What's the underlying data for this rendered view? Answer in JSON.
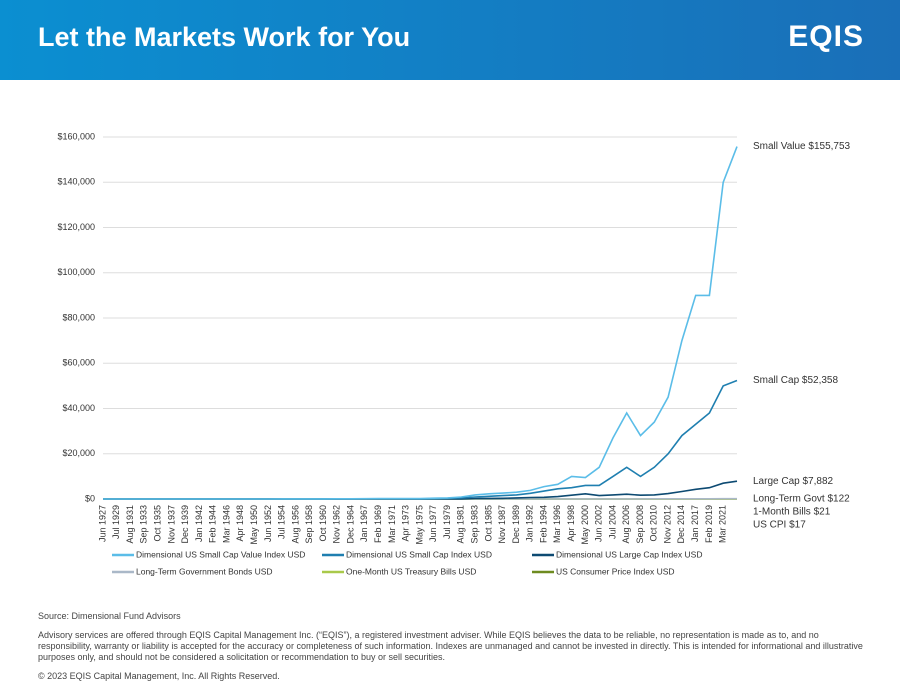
{
  "header": {
    "title": "Let the Markets Work for You",
    "logo": "EQIS"
  },
  "chart_data": {
    "type": "line",
    "categories": [
      "Jun 1927",
      "Jul 1929",
      "Aug 1931",
      "Sep 1933",
      "Oct 1935",
      "Nov 1937",
      "Dec 1939",
      "Jan 1942",
      "Feb 1944",
      "Mar 1946",
      "Apr 1948",
      "May 1950",
      "Jun 1952",
      "Jul 1954",
      "Aug 1956",
      "Sep 1958",
      "Oct 1960",
      "Nov 1962",
      "Dec 1964",
      "Jan 1967",
      "Feb 1969",
      "Mar 1971",
      "Apr 1973",
      "May 1975",
      "Jun 1977",
      "Jul 1979",
      "Aug 1981",
      "Sep 1983",
      "Oct 1985",
      "Nov 1987",
      "Dec 1989",
      "Jan 1992",
      "Feb 1994",
      "Mar 1996",
      "Apr 1998",
      "May 2000",
      "Jun 2002",
      "Jul 2004",
      "Aug 2006",
      "Sep 2008",
      "Oct 2010",
      "Nov 2012",
      "Dec 2014",
      "Jan 2017",
      "Feb 2019",
      "Mar 2021",
      null
    ],
    "ylim": [
      0,
      160000
    ],
    "yticks": [
      {
        "value": 0,
        "label": "$0"
      },
      {
        "value": 20000,
        "label": "$20,000"
      },
      {
        "value": 40000,
        "label": "$40,000"
      },
      {
        "value": 60000,
        "label": "$60,000"
      },
      {
        "value": 80000,
        "label": "$80,000"
      },
      {
        "value": 100000,
        "label": "$100,000"
      },
      {
        "value": 120000,
        "label": "$120,000"
      },
      {
        "value": 140000,
        "label": "$140,000"
      },
      {
        "value": 160000,
        "label": "$160,000"
      }
    ],
    "grid": true,
    "series": [
      {
        "name": "Dimensional US Small Cap Value Index USD",
        "color": "#5bbde8",
        "end_label": "Small Value $155,753",
        "values": [
          1,
          1.2,
          0.4,
          0.5,
          0.9,
          1.5,
          1.2,
          1.5,
          4,
          8,
          8,
          14,
          18,
          25,
          35,
          40,
          55,
          70,
          95,
          140,
          180,
          160,
          180,
          170,
          350,
          500,
          900,
          1800,
          2300,
          2600,
          3000,
          3800,
          5500,
          6500,
          10000,
          9500,
          14000,
          27000,
          38000,
          28000,
          34000,
          45000,
          70000,
          90000,
          90000,
          140000,
          155753
        ]
      },
      {
        "name": "Dimensional US Small Cap Index USD",
        "color": "#1f7fb0",
        "end_label": "Small Cap $52,358",
        "values": [
          1,
          1.1,
          0.4,
          0.5,
          0.8,
          1.2,
          1,
          1.2,
          3,
          6,
          5,
          8,
          10,
          14,
          18,
          22,
          28,
          34,
          45,
          70,
          90,
          75,
          70,
          65,
          150,
          300,
          500,
          900,
          1200,
          1500,
          1800,
          2500,
          3500,
          4500,
          5000,
          6000,
          6000,
          10000,
          14000,
          10000,
          14000,
          20000,
          28000,
          33000,
          38000,
          50000,
          52358
        ]
      },
      {
        "name": "Dimensional US Large Cap Index USD",
        "color": "#0d4a72",
        "end_label": "Large Cap $7,882",
        "values": [
          1,
          1.9,
          0.8,
          0.7,
          1.1,
          1.2,
          1.1,
          1.1,
          1.7,
          2.4,
          2.2,
          3,
          4,
          6,
          8,
          10,
          12,
          13,
          17,
          19,
          21,
          22,
          23,
          22,
          30,
          40,
          50,
          200,
          250,
          320,
          500,
          650,
          750,
          1050,
          1700,
          2300,
          1500,
          1800,
          2100,
          1700,
          1800,
          2400,
          3300,
          4300,
          5000,
          7000,
          7882
        ]
      },
      {
        "name": "Long-Term Government Bonds USD",
        "color": "#aab8c8",
        "end_label": "Long-Term Govt $122",
        "values": [
          1,
          1.05,
          1.2,
          1.3,
          1.5,
          1.6,
          1.8,
          1.9,
          2,
          2.2,
          2.2,
          2.3,
          2.3,
          2.5,
          2.4,
          2.5,
          2.7,
          2.8,
          3,
          3,
          3,
          3.2,
          3.4,
          3.8,
          4.3,
          4.3,
          4.5,
          6.5,
          9,
          11,
          14,
          17,
          19,
          24,
          30,
          33,
          40,
          47,
          53,
          60,
          72,
          90,
          95,
          100,
          110,
          140,
          122
        ]
      },
      {
        "name": "One-Month US Treasury Bills USD",
        "color": "#a9c94a",
        "end_label": "1-Month Bills $21",
        "values": [
          1,
          1.07,
          1.1,
          1.12,
          1.12,
          1.13,
          1.13,
          1.13,
          1.14,
          1.15,
          1.16,
          1.18,
          1.21,
          1.24,
          1.28,
          1.34,
          1.4,
          1.46,
          1.54,
          1.64,
          1.76,
          1.9,
          2.05,
          2.28,
          2.5,
          2.8,
          3.4,
          4.1,
          4.8,
          5.4,
          6.2,
          7,
          7.4,
          8.2,
          9.1,
          10,
          10.9,
          11.1,
          11.8,
          12.7,
          12.8,
          12.8,
          12.8,
          12.9,
          13.4,
          14,
          21
        ]
      },
      {
        "name": "US Consumer Price Index USD",
        "color": "#6e8b20",
        "end_label": "US CPI $17",
        "values": [
          1,
          1,
          0.9,
          0.8,
          0.8,
          0.82,
          0.8,
          0.92,
          0.99,
          1.04,
          1.4,
          1.4,
          1.55,
          1.56,
          1.6,
          1.7,
          1.73,
          1.76,
          1.8,
          1.9,
          2.1,
          2.3,
          2.5,
          3,
          3.4,
          4.2,
          5.4,
          5.8,
          6.2,
          6.6,
          7.5,
          8.3,
          8.7,
          9.2,
          9.6,
          10.2,
          10.7,
          11.3,
          12.2,
          13,
          13.3,
          14,
          14.5,
          14.8,
          15.5,
          16,
          17
        ]
      }
    ]
  },
  "footer": {
    "source": "Source: Dimensional Fund Advisors",
    "disclaimer": "Advisory services are offered through EQIS Capital Management Inc. (“EQIS”), a registered investment adviser. While EQIS believes the data to be reliable, no representation is made as to, and no responsibility, warranty or liability is accepted for the accuracy or completeness of such information. Indexes are unmanaged and cannot be invested in directly. This is intended for informational and illustrative purposes only, and should not be considered a solicitation or recommendation to buy or sell securities.",
    "copyright": "© 2023 EQIS Capital Management, Inc. All Rights Reserved."
  }
}
